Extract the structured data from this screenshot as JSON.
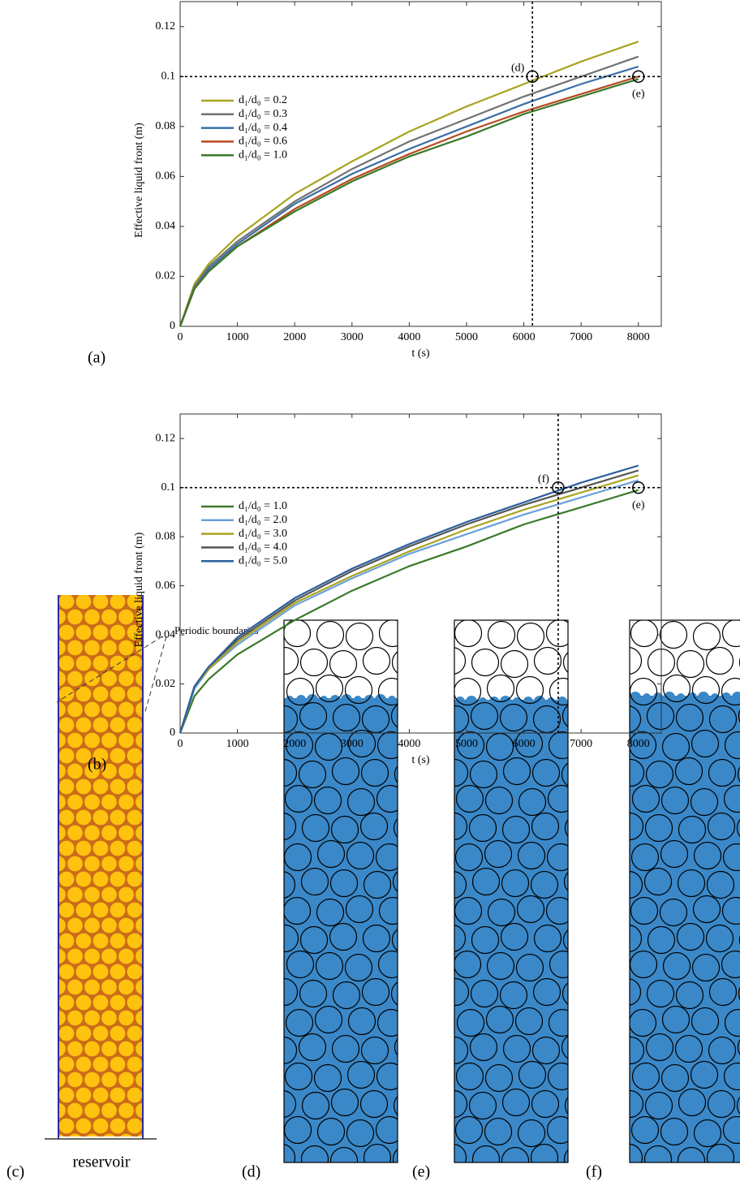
{
  "chart_data": [
    {
      "type": "line",
      "label": "(a)",
      "xlabel": "t (s)",
      "ylabel": "Effective liquid front (m)",
      "x": [
        0,
        250,
        500,
        1000,
        2000,
        3000,
        4000,
        5000,
        6000,
        7000,
        8000
      ],
      "series": [
        {
          "name": "d₁/d₀ = 0.2",
          "color": "#a8a420",
          "values": [
            0,
            0.017,
            0.025,
            0.036,
            0.053,
            0.066,
            0.078,
            0.088,
            0.097,
            0.106,
            0.114
          ]
        },
        {
          "name": "d₁/d₀ = 0.3",
          "color": "#727272",
          "values": [
            0,
            0.016,
            0.024,
            0.034,
            0.05,
            0.063,
            0.074,
            0.083,
            0.092,
            0.1,
            0.108
          ]
        },
        {
          "name": "d₁/d₀ = 0.4",
          "color": "#3a6ea8",
          "values": [
            0,
            0.015,
            0.023,
            0.033,
            0.049,
            0.061,
            0.071,
            0.08,
            0.089,
            0.097,
            0.104
          ]
        },
        {
          "name": "d₁/d₀ = 0.6",
          "color": "#b84a20",
          "values": [
            0,
            0.015,
            0.022,
            0.032,
            0.047,
            0.059,
            0.069,
            0.078,
            0.086,
            0.093,
            0.1
          ]
        },
        {
          "name": "d₁/d₀ = 1.0",
          "color": "#3a7a2a",
          "values": [
            0,
            0.015,
            0.022,
            0.032,
            0.046,
            0.058,
            0.068,
            0.076,
            0.085,
            0.092,
            0.099
          ]
        }
      ],
      "xlim": [
        0,
        8400
      ],
      "ylim": [
        0,
        0.13
      ],
      "xticks": [
        0,
        1000,
        2000,
        3000,
        4000,
        5000,
        6000,
        7000,
        8000
      ],
      "yticks": [
        0,
        0.02,
        0.04,
        0.06,
        0.08,
        0.1,
        0.12
      ],
      "ref_x": 6150,
      "ref_y": 0.1,
      "markers": [
        {
          "x": 6150,
          "y": 0.1,
          "label": "(d)"
        },
        {
          "x": 8000,
          "y": 0.1,
          "label": "(e)"
        }
      ],
      "legend": "upper left"
    },
    {
      "type": "line",
      "label": "(b)",
      "xlabel": "t (s)",
      "ylabel": "Effective liquid front (m)",
      "x": [
        0,
        250,
        500,
        1000,
        2000,
        3000,
        4000,
        5000,
        6000,
        7000,
        8000
      ],
      "series": [
        {
          "name": "d₁/d₀ = 1.0",
          "color": "#3a7a2a",
          "values": [
            0,
            0.015,
            0.022,
            0.032,
            0.046,
            0.058,
            0.068,
            0.076,
            0.085,
            0.092,
            0.099
          ]
        },
        {
          "name": "d₁/d₀ = 2.0",
          "color": "#6aa0d8",
          "values": [
            0,
            0.018,
            0.026,
            0.036,
            0.052,
            0.063,
            0.073,
            0.081,
            0.089,
            0.096,
            0.103
          ]
        },
        {
          "name": "d₁/d₀ = 3.0",
          "color": "#a8a420",
          "values": [
            0,
            0.019,
            0.026,
            0.037,
            0.053,
            0.064,
            0.074,
            0.083,
            0.091,
            0.098,
            0.105
          ]
        },
        {
          "name": "d₁/d₀ = 4.0",
          "color": "#555555",
          "values": [
            0,
            0.019,
            0.027,
            0.038,
            0.054,
            0.066,
            0.076,
            0.085,
            0.093,
            0.1,
            0.107
          ]
        },
        {
          "name": "d₁/d₀ = 5.0",
          "color": "#2a5fa0",
          "values": [
            0,
            0.019,
            0.027,
            0.039,
            0.055,
            0.067,
            0.077,
            0.086,
            0.094,
            0.102,
            0.109
          ]
        }
      ],
      "xlim": [
        0,
        8400
      ],
      "ylim": [
        0,
        0.13
      ],
      "xticks": [
        0,
        1000,
        2000,
        3000,
        4000,
        5000,
        6000,
        7000,
        8000
      ],
      "yticks": [
        0,
        0.02,
        0.04,
        0.06,
        0.08,
        0.1,
        0.12
      ],
      "ref_x": 6600,
      "ref_y": 0.1,
      "markers": [
        {
          "x": 6600,
          "y": 0.1,
          "label": "(f)"
        },
        {
          "x": 8000,
          "y": 0.1,
          "label": "(e)"
        }
      ],
      "legend": "upper left"
    }
  ],
  "figure": {
    "panel_c": {
      "label": "(c)",
      "reservoir": "reservoir",
      "boundaries": "Periodic boundaries"
    },
    "panel_d": {
      "label": "(d)"
    },
    "panel_e": {
      "label": "(e)"
    },
    "panel_f": {
      "label": "(f)"
    }
  }
}
